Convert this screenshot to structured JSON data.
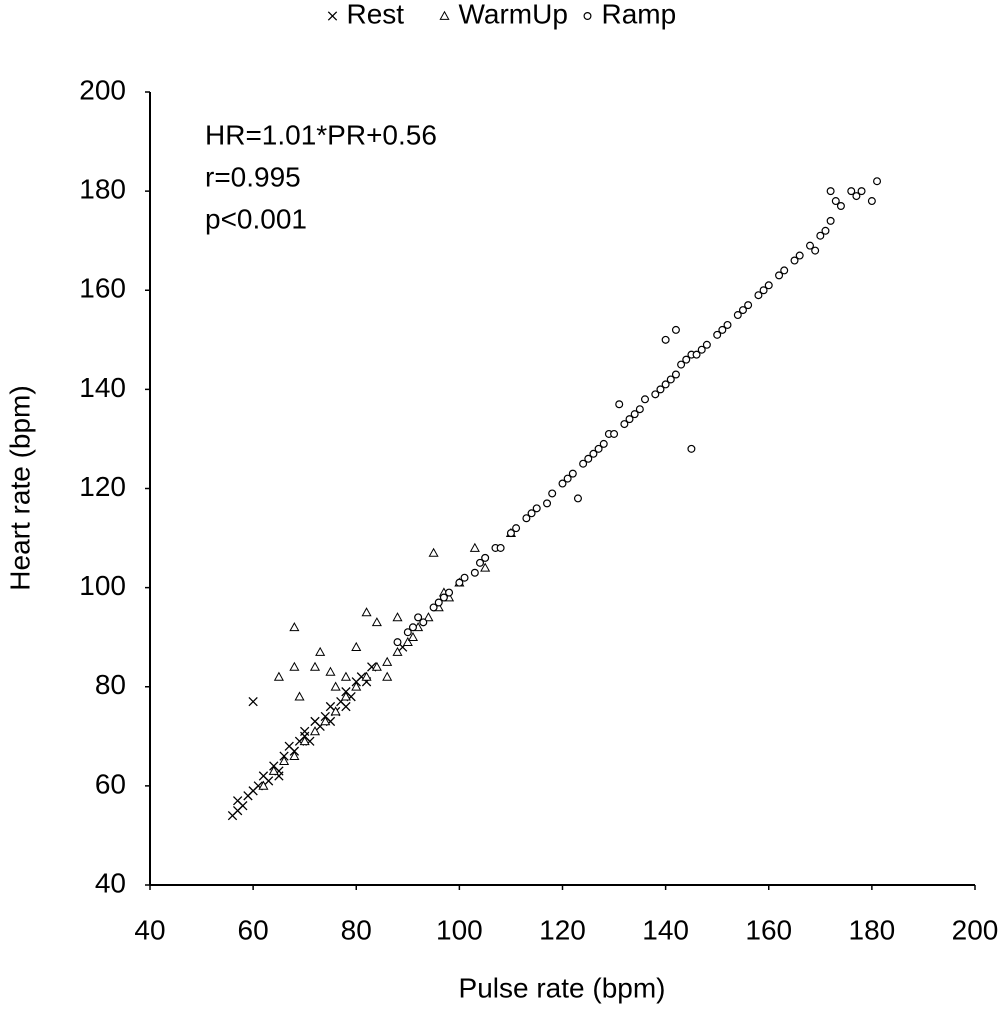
{
  "chart_data": {
    "type": "scatter",
    "xlabel": "Pulse rate (bpm)",
    "ylabel": "Heart rate (bpm)",
    "annotations": [
      "HR=1.01*PR+0.56",
      "r=0.995",
      "p<0.001"
    ],
    "xlim": [
      40,
      200
    ],
    "ylim": [
      40,
      200
    ],
    "xticks": [
      40,
      60,
      80,
      100,
      120,
      140,
      160,
      180,
      200
    ],
    "yticks": [
      40,
      60,
      80,
      100,
      120,
      140,
      160,
      180,
      200
    ],
    "grid": false,
    "legend": "top",
    "series": [
      {
        "name": "Rest",
        "marker": "x",
        "color": "#000000",
        "x": [
          56,
          57,
          58,
          59,
          60,
          61,
          62,
          63,
          64,
          65,
          66,
          67,
          68,
          69,
          70,
          71,
          72,
          73,
          74,
          75,
          76,
          77,
          78,
          79,
          80,
          81,
          82,
          83,
          60,
          57,
          65,
          70,
          75,
          78,
          89
        ],
        "values": [
          54,
          57,
          56,
          58,
          59,
          60,
          62,
          61,
          64,
          63,
          66,
          68,
          67,
          69,
          70,
          69,
          73,
          72,
          74,
          76,
          75,
          77,
          76,
          78,
          81,
          82,
          81,
          84,
          77,
          55,
          62,
          71,
          73,
          79,
          88
        ]
      },
      {
        "name": "WarmUp",
        "marker": "triangle",
        "color": "#000000",
        "x": [
          62,
          64,
          66,
          68,
          70,
          72,
          74,
          76,
          78,
          80,
          82,
          84,
          86,
          88,
          90,
          92,
          94,
          96,
          98,
          100,
          65,
          68,
          68,
          72,
          73,
          75,
          69,
          76,
          82,
          80,
          95,
          84,
          86,
          78,
          88,
          91,
          97,
          103,
          105,
          110
        ],
        "values": [
          60,
          63,
          65,
          66,
          69,
          71,
          73,
          75,
          78,
          80,
          82,
          84,
          85,
          87,
          89,
          92,
          94,
          96,
          98,
          101,
          82,
          92,
          84,
          84,
          87,
          83,
          78,
          80,
          95,
          88,
          107,
          93,
          82,
          82,
          94,
          90,
          99,
          108,
          104,
          111
        ]
      },
      {
        "name": "Ramp",
        "marker": "circle",
        "color": "#000000",
        "x": [
          88,
          90,
          91,
          92,
          93,
          95,
          96,
          97,
          98,
          100,
          101,
          103,
          104,
          105,
          107,
          108,
          110,
          111,
          113,
          114,
          115,
          117,
          118,
          120,
          121,
          122,
          124,
          125,
          126,
          127,
          128,
          129,
          130,
          132,
          133,
          134,
          135,
          136,
          138,
          139,
          140,
          141,
          142,
          143,
          144,
          145,
          146,
          147,
          148,
          150,
          151,
          152,
          154,
          155,
          156,
          158,
          159,
          160,
          162,
          163,
          165,
          166,
          168,
          169,
          170,
          171,
          172,
          172,
          173,
          174,
          176,
          177,
          178,
          180,
          181,
          145,
          142,
          140,
          123,
          131
        ],
        "values": [
          89,
          91,
          92,
          94,
          93,
          96,
          97,
          98,
          99,
          101,
          102,
          103,
          105,
          106,
          108,
          108,
          111,
          112,
          114,
          115,
          116,
          117,
          119,
          121,
          122,
          123,
          125,
          126,
          127,
          128,
          129,
          131,
          131,
          133,
          134,
          135,
          136,
          138,
          139,
          140,
          141,
          142,
          143,
          145,
          146,
          147,
          147,
          148,
          149,
          151,
          152,
          153,
          155,
          156,
          157,
          159,
          160,
          161,
          163,
          164,
          166,
          167,
          169,
          168,
          171,
          172,
          174,
          180,
          178,
          177,
          180,
          179,
          180,
          178,
          182,
          128,
          152,
          150,
          118,
          137
        ]
      }
    ]
  }
}
